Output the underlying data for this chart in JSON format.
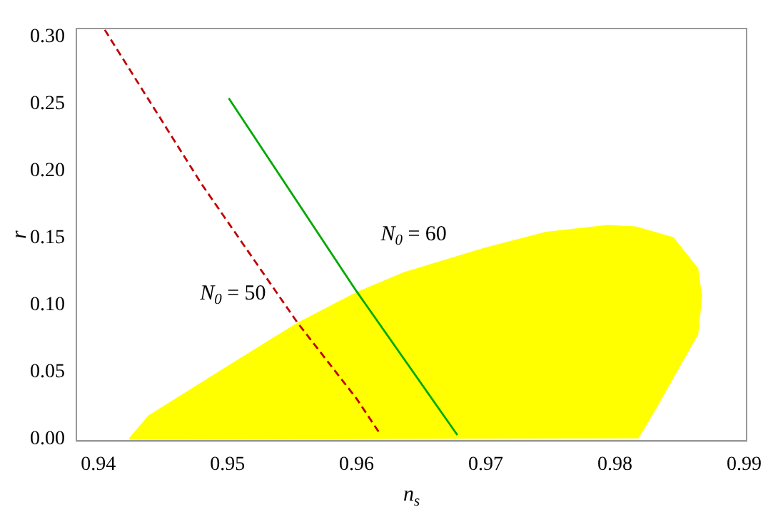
{
  "chart_data": {
    "type": "line",
    "xlabel": "n$_{s}$",
    "ylabel": "r",
    "xlim": [
      0.9383,
      0.9902
    ],
    "ylim": [
      -0.0015,
      0.306
    ],
    "xticks": [
      0.94,
      0.95,
      0.96,
      0.97,
      0.98,
      0.99
    ],
    "yticks": [
      {
        "value": 0,
        "label": "0.00"
      },
      0.05,
      {
        "value": 0.1,
        "label": "0.10"
      },
      0.15,
      {
        "value": 0.2,
        "label": "0.20"
      },
      0.25,
      {
        "value": 0.3,
        "label": "0.30"
      }
    ],
    "grid": false,
    "legend": false,
    "marker": "none",
    "series": [
      {
        "type": "area",
        "color": "#ffff00",
        "x": [
          0.9424,
          0.9439,
          0.9497,
          0.9554,
          0.96,
          0.9637,
          0.9699,
          0.9747,
          0.9794,
          0.9816,
          0.9845,
          0.9864,
          0.9867,
          0.9864,
          0.9845,
          0.9831,
          0.9818,
          0.9424
        ],
        "values": [
          0,
          0.017,
          0.052,
          0.086,
          0.109,
          0.124,
          0.142,
          0.154,
          0.159,
          0.158,
          0.15,
          0.127,
          0.106,
          0.078,
          0.046,
          0.022,
          0.001,
          0
        ]
      },
      {
        "name": "N$_{0}$ = 50",
        "color": "#c00000",
        "line_style": "dashed",
        "x": [
          0.9405,
          0.948,
          0.9554,
          0.96,
          0.9618
        ],
        "values": [
          0.305,
          0.19,
          0.087,
          0.03,
          0.004
        ]
      },
      {
        "name": "N$_{0}$ = 60",
        "color": "#00aa00",
        "line_style": "solid",
        "x": [
          0.9501,
          0.96,
          0.9678
        ],
        "values": [
          0.254,
          0.11,
          0.003
        ]
      }
    ]
  }
}
